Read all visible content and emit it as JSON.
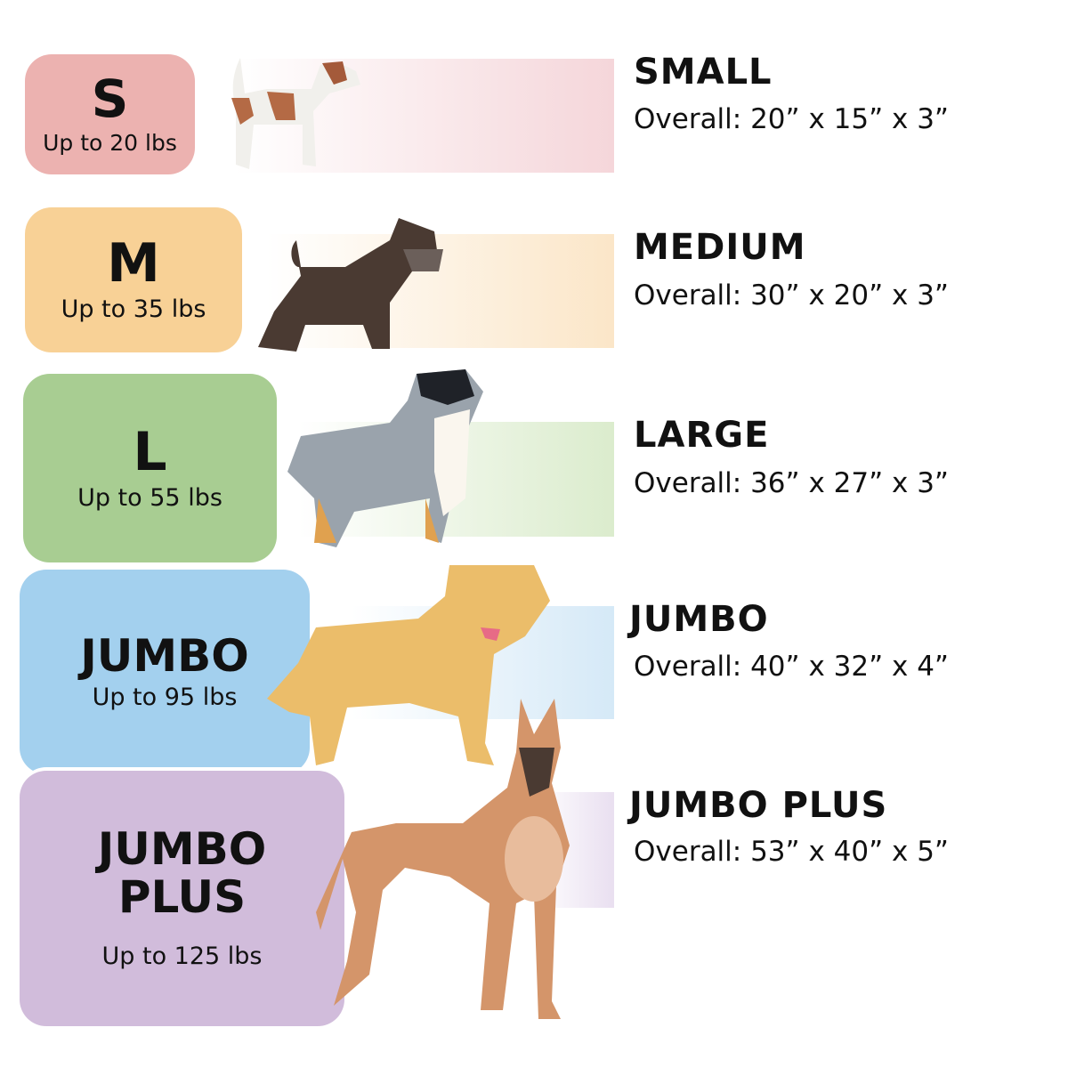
{
  "sizes": [
    {
      "code": "S",
      "weight": "Up to 20 lbs",
      "name": "SMALL",
      "dimensions": "Overall: 20” x 15” x 3”",
      "box_color": "#ecb2b0",
      "bar_color": "#f5d6da"
    },
    {
      "code": "M",
      "weight": "Up to 35 lbs",
      "name": "MEDIUM",
      "dimensions": "Overall: 30” x 20” x 3”",
      "box_color": "#f8d196",
      "bar_color": "#fbe6c8"
    },
    {
      "code": "L",
      "weight": "Up to 55 lbs",
      "name": "LARGE",
      "dimensions": "Overall: 36” x 27” x 3”",
      "box_color": "#a8cd92",
      "bar_color": "#dbeccd"
    },
    {
      "code": "JUMBO",
      "weight": "Up to 95 lbs",
      "name": "JUMBO",
      "dimensions": "Overall: 40” x 32” x 4”",
      "box_color": "#a3d0ee",
      "bar_color": "#d5e9f7"
    },
    {
      "code_line1": "JUMBO",
      "code_line2": "PLUS",
      "weight": "Up to 125 lbs",
      "name": "JUMBO PLUS",
      "dimensions": "Overall: 53” x 40” x 5”",
      "box_color": "#d1bcdb",
      "bar_color": "#e9dff0"
    }
  ]
}
